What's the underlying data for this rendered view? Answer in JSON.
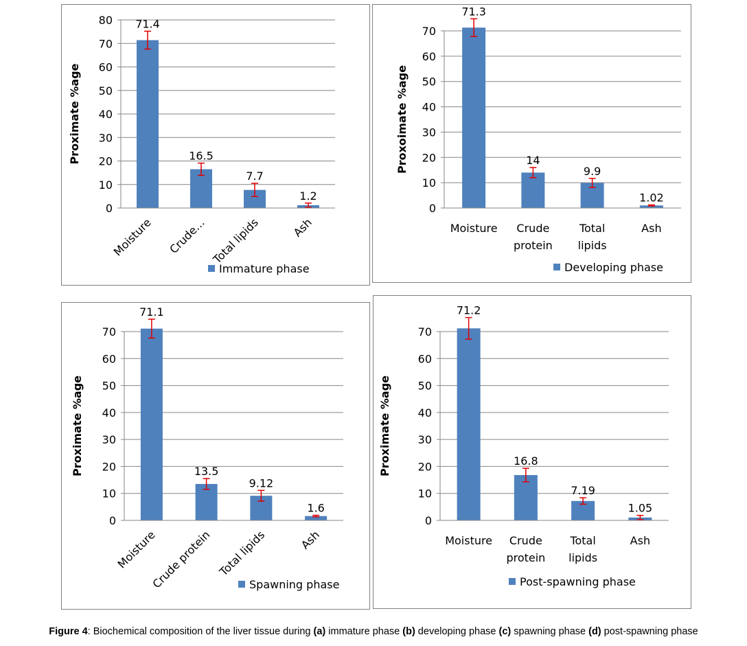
{
  "colors": {
    "bar": "#4f81bd",
    "error_bar": "#e00000",
    "grid": "#868686",
    "axis": "#868686"
  },
  "chart_data": [
    {
      "id": "a",
      "type": "bar",
      "title": "",
      "xlabel": "",
      "ylabel": "Proximate %age",
      "ylim": [
        0,
        80
      ],
      "yticks": [
        0,
        10,
        20,
        30,
        40,
        50,
        60,
        70,
        80
      ],
      "grid": true,
      "rotated_labels": true,
      "categories": [
        "Moisture",
        "Crude…",
        "Total lipids",
        "Ash"
      ],
      "series": [
        {
          "name": "Immature phase",
          "values": [
            71.4,
            16.5,
            7.7,
            1.2
          ],
          "errors": [
            3.8,
            2.6,
            2.8,
            0.9
          ]
        }
      ],
      "data_labels": [
        "71.4",
        "16.5",
        "7.7",
        "1.2"
      ],
      "legend": "bottom"
    },
    {
      "id": "b",
      "type": "bar",
      "title": "",
      "xlabel": "",
      "ylabel": "Proxoimate %age",
      "ylim": [
        0,
        70
      ],
      "yticks": [
        0,
        10,
        20,
        30,
        40,
        50,
        60,
        70
      ],
      "grid": true,
      "rotated_labels": false,
      "categories": [
        "Moisture",
        "Crude protein",
        "Total lipids",
        "Ash"
      ],
      "series": [
        {
          "name": "Developing phase",
          "values": [
            71.3,
            14,
            9.9,
            1.02
          ],
          "errors": [
            3.5,
            2.0,
            1.8,
            0.2
          ]
        }
      ],
      "data_labels": [
        "71.3",
        "14",
        "9.9",
        "1.02"
      ],
      "legend": "bottom"
    },
    {
      "id": "c",
      "type": "bar",
      "title": "",
      "xlabel": "",
      "ylabel": "Proximate %age",
      "ylim": [
        0,
        70
      ],
      "yticks": [
        0,
        10,
        20,
        30,
        40,
        50,
        60,
        70
      ],
      "grid": true,
      "rotated_labels": true,
      "categories": [
        "Moisture",
        "Crude protein",
        "Total lipids",
        "Ash"
      ],
      "series": [
        {
          "name": "Spawning phase",
          "values": [
            71.1,
            13.5,
            9.12,
            1.6
          ],
          "errors": [
            3.5,
            2.0,
            2.0,
            0.3
          ]
        }
      ],
      "data_labels": [
        "71.1",
        "13.5",
        "9.12",
        "1.6"
      ],
      "legend": "bottom"
    },
    {
      "id": "d",
      "type": "bar",
      "title": "",
      "xlabel": "",
      "ylabel": "Proximate %age",
      "ylim": [
        0,
        70
      ],
      "yticks": [
        0,
        10,
        20,
        30,
        40,
        50,
        60,
        70
      ],
      "grid": true,
      "rotated_labels": false,
      "categories": [
        "Moisture",
        "Crude protein",
        "Total lipids",
        "Ash"
      ],
      "series": [
        {
          "name": "Post-spawning phase",
          "values": [
            71.2,
            16.8,
            7.19,
            1.05
          ],
          "errors": [
            4.0,
            2.5,
            1.2,
            0.8
          ]
        }
      ],
      "data_labels": [
        "71.2",
        "16.8",
        "7.19",
        "1.05"
      ],
      "legend": "bottom"
    }
  ],
  "caption": {
    "figure_label": "Figure 4",
    "p1": ": Biochemical composition of the liver tissue during ",
    "a": "(a)",
    "p2": " immature phase ",
    "b": "(b)",
    "p3": " developing phase ",
    "c": "(c)",
    "p4": " spawning phase ",
    "d": "(d)",
    "p5": " post-spawning phase"
  }
}
